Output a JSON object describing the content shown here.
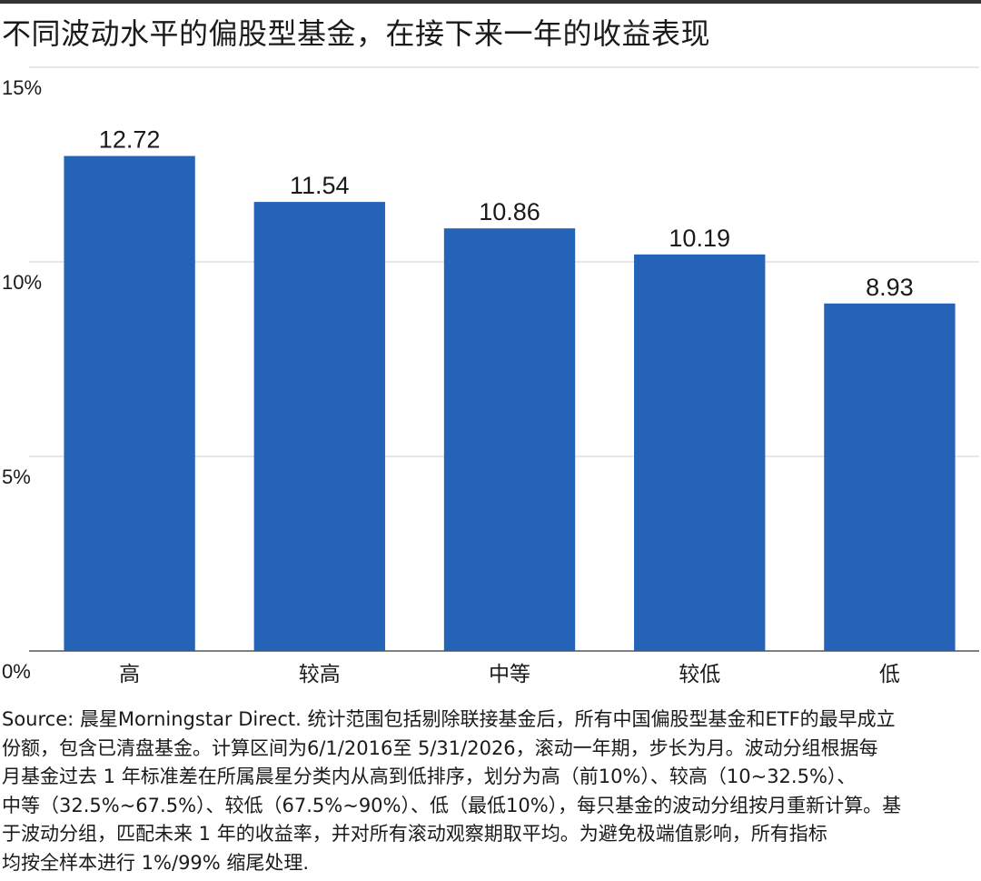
{
  "title": "不同波动水平的偏股型基金，在接下来一年的收益表现",
  "colors": {
    "bar": "#2563b8",
    "grid": "#cfcfcf",
    "axis": "#555555",
    "rule": "#333333",
    "text": "#1a1a1a"
  },
  "chart_data": {
    "type": "bar",
    "categories": [
      "高",
      "较高",
      "中等",
      "较低",
      "低"
    ],
    "values": [
      12.72,
      11.54,
      10.86,
      10.19,
      8.93
    ],
    "value_labels": [
      "12.72",
      "11.54",
      "10.86",
      "10.19",
      "8.93"
    ],
    "yticks": [
      0,
      5,
      10,
      15
    ],
    "ytick_labels": [
      "0%",
      "5%",
      "10%",
      "15%"
    ],
    "ylim": [
      0,
      15
    ],
    "grid": true,
    "title": "",
    "xlabel": "",
    "ylabel": ""
  },
  "source": {
    "lines": [
      "Source: 晨星Morningstar Direct. 统计范围包括剔除联接基金后，所有中国偏股型基金和ETF的最早成立",
      "份额，包含已清盘基金。计算区间为6/1/2016至 5/31/2026，滚动一年期，步长为月。波动分组根据每",
      "月基金过去 1 年标准差在所属晨星分类内从高到低排序，划分为高（前10%）、较高（10~32.5%）、",
      "中等（32.5%~67.5%）、较低（67.5%~90%）、低（最低10%），每只基金的波动分组按月重新计算。基",
      "于波动分组，匹配未来 1 年的收益率，并对所有滚动观察期取平均。为避免极端值影响，所有指标",
      "均按全样本进行 1%/99% 缩尾处理."
    ]
  }
}
